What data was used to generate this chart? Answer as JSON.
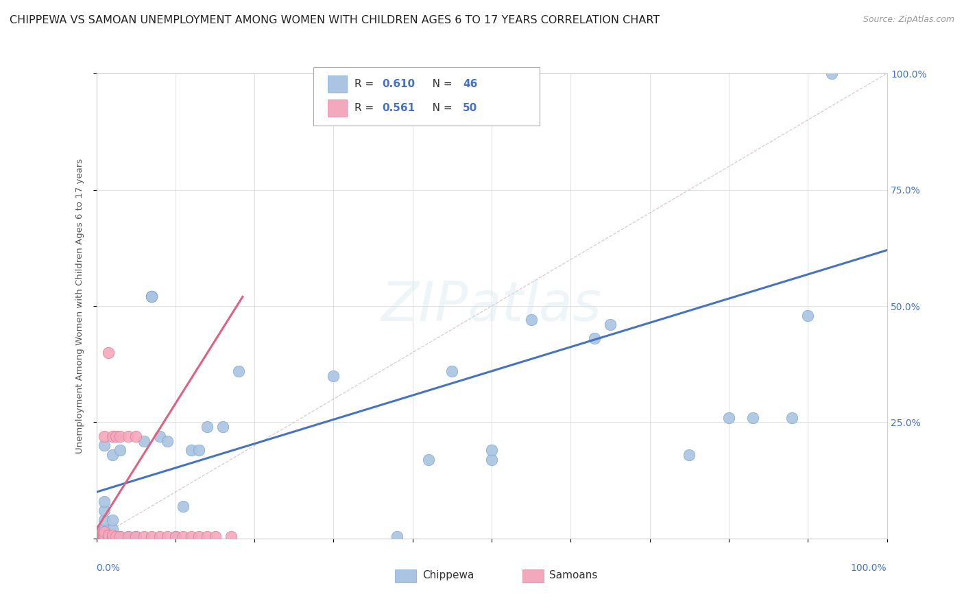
{
  "title": "CHIPPEWA VS SAMOAN UNEMPLOYMENT AMONG WOMEN WITH CHILDREN AGES 6 TO 17 YEARS CORRELATION CHART",
  "source": "Source: ZipAtlas.com",
  "ylabel": "Unemployment Among Women with Children Ages 6 to 17 years",
  "chippewa_color": "#aac4e2",
  "samoans_color": "#f4a8bc",
  "trendline_chippewa_color": "#4472c4",
  "trendline_samoans_color": "#e06080",
  "diagonal_color": "#ccb0b8",
  "background_color": "#ffffff",
  "watermark": "ZIPatlas",
  "chippewa_x": [
    0.005,
    0.005,
    0.008,
    0.01,
    0.01,
    0.01,
    0.01,
    0.01,
    0.015,
    0.02,
    0.02,
    0.02,
    0.02,
    0.025,
    0.03,
    0.03,
    0.04,
    0.05,
    0.06,
    0.07,
    0.07,
    0.07,
    0.08,
    0.09,
    0.1,
    0.11,
    0.12,
    0.13,
    0.14,
    0.16,
    0.18,
    0.3,
    0.38,
    0.42,
    0.45,
    0.5,
    0.5,
    0.55,
    0.63,
    0.65,
    0.75,
    0.8,
    0.83,
    0.88,
    0.9,
    0.93
  ],
  "chippewa_y": [
    0.005,
    0.015,
    0.005,
    0.02,
    0.04,
    0.06,
    0.08,
    0.2,
    0.005,
    0.005,
    0.02,
    0.04,
    0.18,
    0.005,
    0.005,
    0.19,
    0.005,
    0.005,
    0.21,
    0.52,
    0.52,
    0.52,
    0.22,
    0.21,
    0.005,
    0.07,
    0.19,
    0.19,
    0.24,
    0.24,
    0.36,
    0.35,
    0.005,
    0.17,
    0.36,
    0.17,
    0.19,
    0.47,
    0.43,
    0.46,
    0.18,
    0.26,
    0.26,
    0.26,
    0.48,
    1.0
  ],
  "samoans_x": [
    0.001,
    0.001,
    0.001,
    0.002,
    0.002,
    0.003,
    0.003,
    0.003,
    0.004,
    0.004,
    0.004,
    0.005,
    0.005,
    0.006,
    0.006,
    0.007,
    0.007,
    0.008,
    0.008,
    0.009,
    0.009,
    0.01,
    0.01,
    0.01,
    0.01,
    0.015,
    0.015,
    0.015,
    0.02,
    0.02,
    0.02,
    0.025,
    0.025,
    0.03,
    0.03,
    0.04,
    0.04,
    0.05,
    0.05,
    0.06,
    0.07,
    0.08,
    0.09,
    0.1,
    0.11,
    0.12,
    0.13,
    0.14,
    0.15,
    0.17
  ],
  "samoans_y": [
    0.002,
    0.005,
    0.009,
    0.002,
    0.006,
    0.002,
    0.005,
    0.008,
    0.002,
    0.006,
    0.009,
    0.003,
    0.007,
    0.003,
    0.007,
    0.003,
    0.007,
    0.003,
    0.007,
    0.004,
    0.008,
    0.004,
    0.007,
    0.015,
    0.22,
    0.004,
    0.008,
    0.4,
    0.004,
    0.008,
    0.22,
    0.005,
    0.22,
    0.005,
    0.22,
    0.005,
    0.22,
    0.005,
    0.22,
    0.005,
    0.005,
    0.005,
    0.005,
    0.005,
    0.005,
    0.005,
    0.005,
    0.005,
    0.005,
    0.005
  ],
  "chippewa_trend_x": [
    0.0,
    1.0
  ],
  "chippewa_trend_y": [
    0.1,
    0.62
  ],
  "samoans_trend_x": [
    0.0,
    0.185
  ],
  "samoans_trend_y": [
    0.02,
    0.52
  ],
  "xlim": [
    0,
    1.0
  ],
  "ylim": [
    0,
    1.0
  ],
  "ytick_values": [
    0,
    0.25,
    0.5,
    0.75,
    1.0
  ],
  "ytick_labels": [
    "",
    "25.0%",
    "50.0%",
    "75.0%",
    "100.0%"
  ],
  "xtick_values": [
    0,
    0.1,
    0.2,
    0.3,
    0.4,
    0.5,
    0.6,
    0.7,
    0.8,
    0.9,
    1.0
  ],
  "grid_color": "#d8d8d8",
  "title_fontsize": 11.5,
  "source_fontsize": 9,
  "axis_label_color": "#4472c4",
  "ylabel_color": "#555555"
}
